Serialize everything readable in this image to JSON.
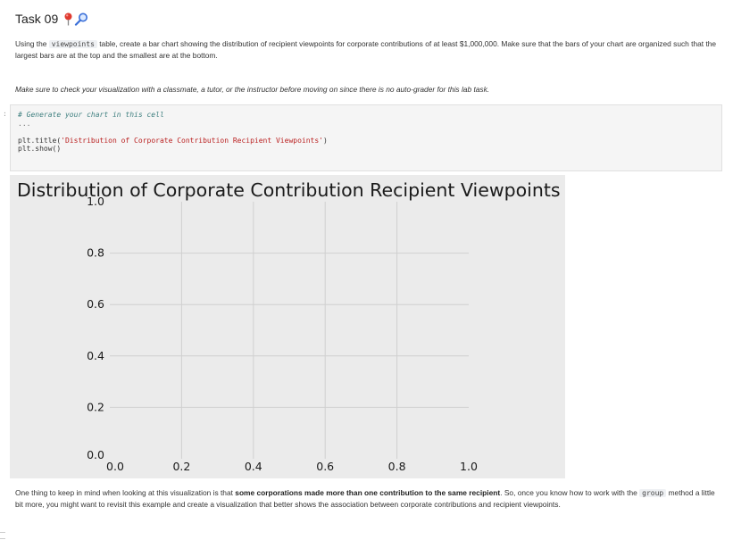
{
  "header": {
    "title": "Task 09"
  },
  "instructions": {
    "p1_part1": "Using the",
    "p1_code": "viewpoints",
    "p1_part2": "table, create a bar chart showing the distribution of recipient viewpoints for corporate contributions of at least $1,000,000. Make sure that the bars of your chart are organized such that the largest bars are at the top and the smallest are at the bottom.",
    "p2": "Make sure to check your visualization with a classmate, a tutor, or the instructor before moving on since there is no auto-grader for this lab task."
  },
  "code_cell": {
    "prompt": ":",
    "line1": "# Generate your chart in this cell",
    "line2": "...",
    "line3_a": "plt.title(",
    "line3_str": "'Distribution of Corporate Contribution Recipient Viewpoints'",
    "line3_b": ")",
    "line4": "plt.show()"
  },
  "chart_data": {
    "type": "bar",
    "title": "Distribution of Corporate Contribution Recipient Viewpoints",
    "categories": [],
    "values": [],
    "xlim": [
      0.0,
      1.0
    ],
    "ylim": [
      0.0,
      1.0
    ],
    "xticks": [
      "0.0",
      "0.2",
      "0.4",
      "0.6",
      "0.8",
      "1.0"
    ],
    "yticks": [
      "0.0",
      "0.2",
      "0.4",
      "0.6",
      "0.8",
      "1.0"
    ],
    "grid": true,
    "background": "#ebebeb",
    "grid_color": "#d0d0d0"
  },
  "footer": {
    "part1": "One thing to keep in mind when looking at this visualization is that",
    "bold": "some corporations made more than one contribution to the same recipient",
    "part2": ". So, once you know how to work with the",
    "code": "group",
    "part3": "method a little bit more, you might want to revisit this example and create a visualization that better shows the association between corporate contributions and recipient viewpoints."
  }
}
